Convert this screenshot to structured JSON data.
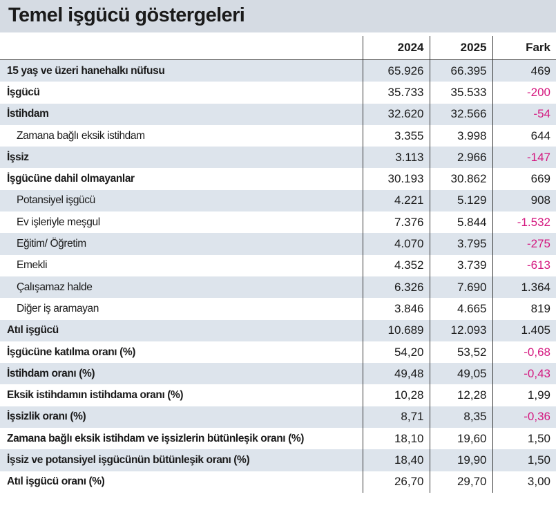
{
  "title": "Temel işgücü göstergeleri",
  "table": {
    "header": [
      "2024",
      "2025",
      "Fark"
    ],
    "rows": [
      [
        "15 yaş ve üzeri hanehalkı nüfusu",
        "65.926",
        "66.395",
        "469"
      ],
      [
        "İşgücü",
        "35.733",
        "35.533",
        "-200"
      ],
      [
        "İstihdam",
        "32.620",
        "32.566",
        "-54"
      ],
      [
        "Zamana bağlı eksik istihdam",
        "3.355",
        "3.998",
        "644"
      ],
      [
        "İşsiz",
        "3.113",
        "2.966",
        "-147"
      ],
      [
        "İşgücüne dahil olmayanlar",
        "30.193",
        "30.862",
        "669"
      ],
      [
        "Potansiyel işgücü",
        "4.221",
        "5.129",
        "908"
      ],
      [
        "Ev işleriyle meşgul",
        "7.376",
        "5.844",
        "-1.532"
      ],
      [
        "Eğitim/ Öğretim",
        "4.070",
        "3.795",
        "-275"
      ],
      [
        "Emekli",
        "4.352",
        "3.739",
        "-613"
      ],
      [
        "Çalışamaz halde",
        "6.326",
        "7.690",
        "1.364"
      ],
      [
        "Diğer iş aramayan",
        "3.846",
        "4.665",
        "819"
      ],
      [
        "Atıl işgücü",
        "10.689",
        "12.093",
        "1.405"
      ],
      [
        "İşgücüne katılma oranı (%)",
        "54,20",
        "53,52",
        "-0,68"
      ],
      [
        "İstihdam oranı  (%)",
        "49,48",
        "49,05",
        "-0,43"
      ],
      [
        "Eksik istihdamın istihdama oranı (%)",
        "10,28",
        "12,28",
        "1,99"
      ],
      [
        "İşsizlik oranı (%)",
        "8,71",
        "8,35",
        "-0,36"
      ],
      [
        "Zamana bağlı eksik istihdam ve işsizlerin bütünleşik oranı (%)",
        "18,10",
        "19,60",
        "1,50"
      ],
      [
        "İşsiz ve potansiyel işgücünün bütünleşik oranı (%)",
        "18,40",
        "19,90",
        "1,50"
      ],
      [
        "Atıl işgücü oranı (%)",
        "26,70",
        "29,70",
        "3,00"
      ]
    ]
  }
}
